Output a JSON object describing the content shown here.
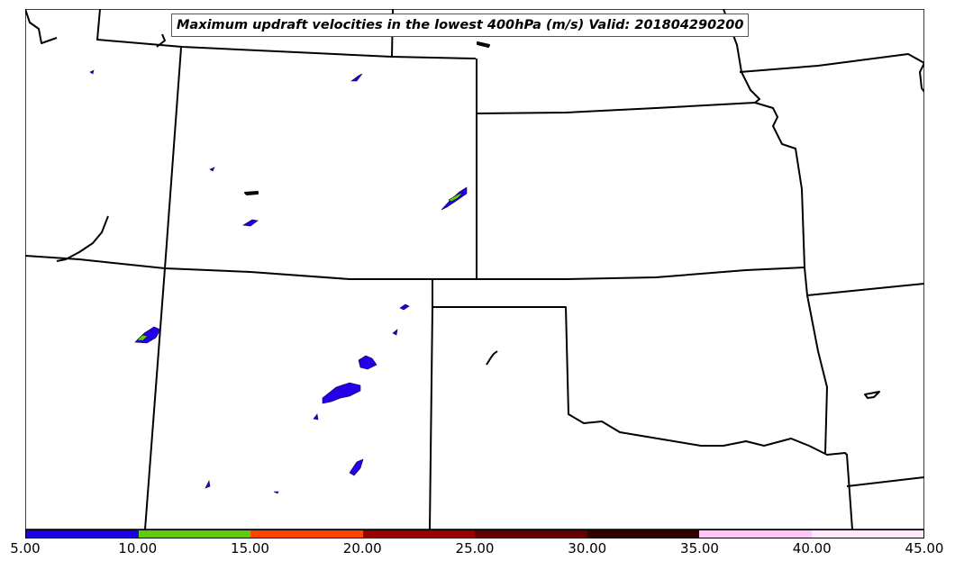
{
  "map": {
    "title": "Maximum updraft velocities in the lowest 400hPa (m/s) Valid: 201804290200",
    "field_colors": {
      "low": "#2300e6",
      "mid": "#5ecc0a"
    }
  },
  "colorbar": {
    "bins": [
      {
        "from": 5.0,
        "to": 10.0,
        "color": "#1c00e6"
      },
      {
        "from": 10.0,
        "to": 15.0,
        "color": "#5fcc10"
      },
      {
        "from": 15.0,
        "to": 20.0,
        "color": "#ff4500"
      },
      {
        "from": 20.0,
        "to": 25.0,
        "color": "#990000"
      },
      {
        "from": 25.0,
        "to": 30.0,
        "color": "#660000"
      },
      {
        "from": 30.0,
        "to": 35.0,
        "color": "#330000"
      },
      {
        "from": 35.0,
        "to": 40.0,
        "color": "#ffc6f5"
      },
      {
        "from": 40.0,
        "to": 45.0,
        "color": "#ffe8fb"
      }
    ],
    "tick_labels": [
      "5.00",
      "10.00",
      "15.00",
      "20.00",
      "25.00",
      "30.00",
      "35.00",
      "40.00",
      "45.00"
    ]
  }
}
